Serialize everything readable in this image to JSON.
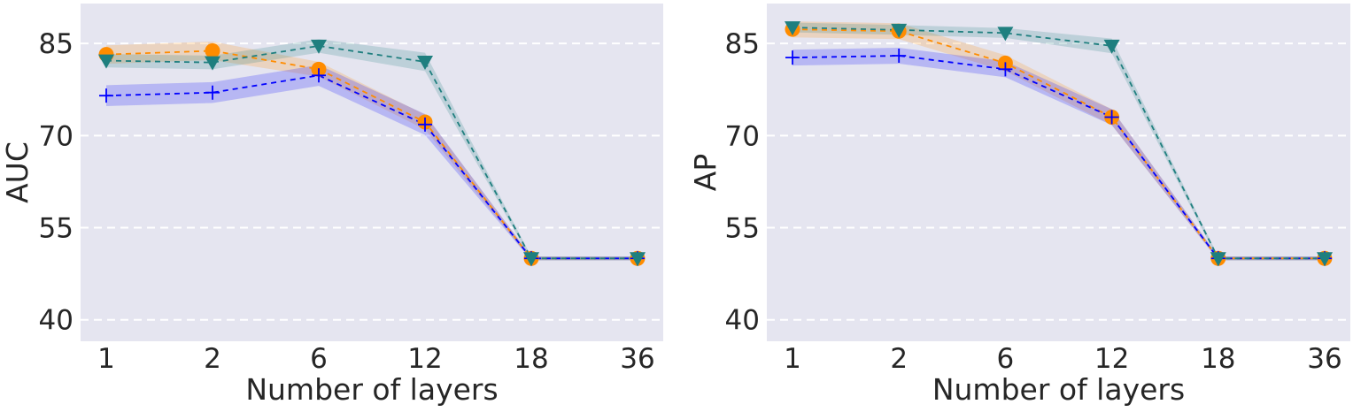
{
  "chart_data": [
    {
      "type": "line",
      "ylabel": "AUC",
      "xlabel": "Number of layers",
      "categories": [
        "1",
        "2",
        "6",
        "12",
        "18",
        "36"
      ],
      "ylim": [
        36.5,
        91.5
      ],
      "yticks": [
        "40",
        "55",
        "70",
        "85"
      ],
      "grid": true,
      "series": [
        {
          "color": "#ff8c00",
          "marker": "circle",
          "values": [
            83.2,
            83.8,
            80.8,
            72.2,
            50.0,
            50.0
          ],
          "band": [
            1.5,
            1.5,
            1.2,
            1.2,
            0.3,
            0.3
          ]
        },
        {
          "color": "#0000ff",
          "marker": "plus",
          "values": [
            76.5,
            77.0,
            79.8,
            71.8,
            50.0,
            50.0
          ],
          "band": [
            1.7,
            1.7,
            1.7,
            1.7,
            0.3,
            0.3
          ]
        },
        {
          "color": "#1f7f7f",
          "marker": "triangle-down",
          "values": [
            82.2,
            81.9,
            84.6,
            82.0,
            50.0,
            50.0
          ],
          "band": [
            1.1,
            1.1,
            1.1,
            1.5,
            0.3,
            0.3
          ]
        }
      ]
    },
    {
      "type": "line",
      "ylabel": "AP",
      "xlabel": "Number of layers",
      "categories": [
        "1",
        "2",
        "6",
        "12",
        "18",
        "36"
      ],
      "ylim": [
        36.5,
        91.5
      ],
      "yticks": [
        "40",
        "55",
        "70",
        "85"
      ],
      "grid": true,
      "series": [
        {
          "color": "#ff8c00",
          "marker": "circle",
          "values": [
            87.3,
            87.0,
            81.8,
            73.0,
            50.0,
            50.0
          ],
          "band": [
            1.3,
            1.3,
            1.3,
            1.3,
            0.3,
            0.3
          ]
        },
        {
          "color": "#0000ff",
          "marker": "plus",
          "values": [
            82.7,
            83.0,
            80.8,
            73.0,
            50.0,
            50.0
          ],
          "band": [
            1.3,
            1.3,
            1.3,
            1.3,
            0.3,
            0.3
          ]
        },
        {
          "color": "#1f7f7f",
          "marker": "triangle-down",
          "values": [
            87.6,
            87.2,
            86.7,
            84.6,
            50.0,
            50.0
          ],
          "band": [
            0.8,
            0.8,
            0.8,
            1.2,
            0.3,
            0.3
          ]
        }
      ]
    }
  ]
}
